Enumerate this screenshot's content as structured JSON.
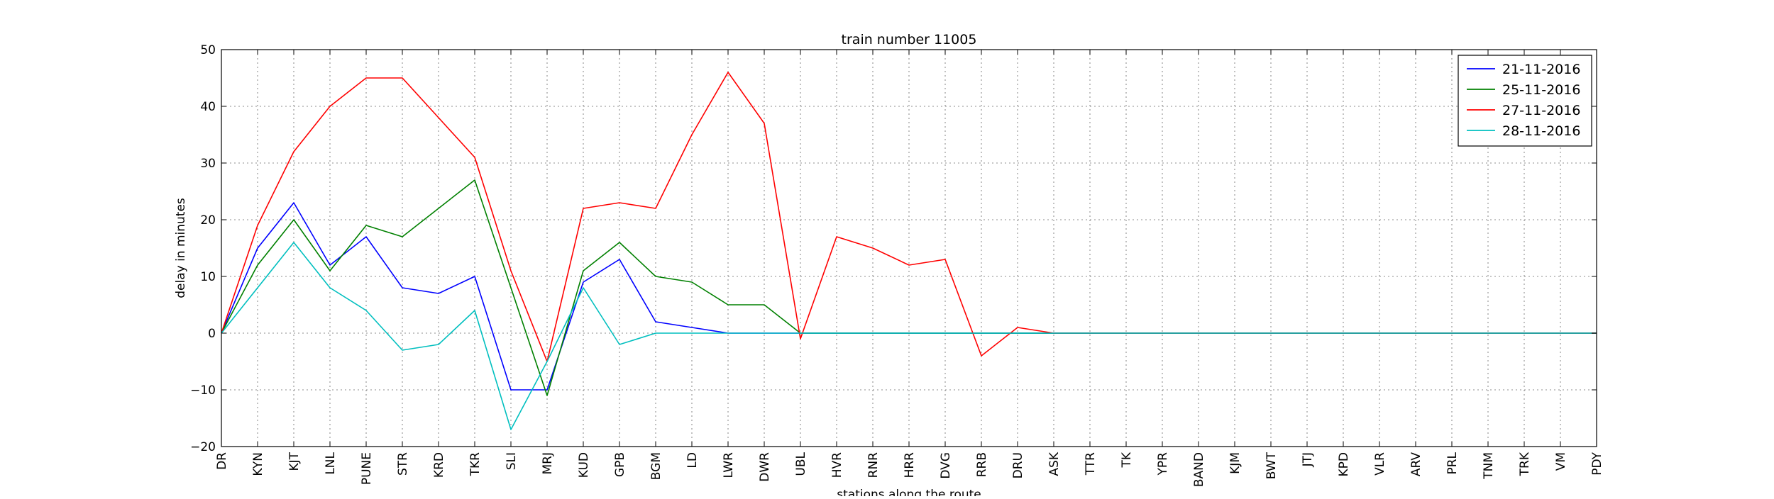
{
  "chart_data": {
    "type": "line",
    "title": "train number 11005",
    "xlabel": "stations along the route",
    "ylabel": "delay in minutes",
    "ylim": [
      -20,
      50
    ],
    "yticks": [
      -20,
      -10,
      0,
      10,
      20,
      30,
      40,
      50
    ],
    "grid": true,
    "legend_position": "top-right",
    "categories": [
      "DR",
      "KYN",
      "KJT",
      "LNL",
      "PUNE",
      "STR",
      "KRD",
      "TKR",
      "SLI",
      "MRJ",
      "KUD",
      "GPB",
      "BGM",
      "LD",
      "LWR",
      "DWR",
      "UBL",
      "HVR",
      "RNR",
      "HRR",
      "DVG",
      "RRB",
      "DRU",
      "ASK",
      "TTR",
      "TK",
      "YPR",
      "BAND",
      "KJM",
      "BWT",
      "JTJ",
      "KPD",
      "VLR",
      "ARV",
      "PRL",
      "TNM",
      "TRK",
      "VM",
      "PDY"
    ],
    "series": [
      {
        "name": "21-11-2016",
        "color": "#0000ff",
        "values": [
          0,
          15,
          23,
          12,
          17,
          8,
          7,
          10,
          -10,
          -10,
          9,
          13,
          2,
          1,
          0,
          0,
          0,
          0,
          0,
          0,
          0,
          0,
          0,
          0,
          0,
          0,
          0,
          0,
          0,
          0,
          0,
          0,
          0,
          0,
          0,
          0,
          0,
          0,
          0
        ]
      },
      {
        "name": "25-11-2016",
        "color": "#008000",
        "values": [
          0,
          12,
          20,
          11,
          19,
          17,
          22,
          27,
          8,
          -11,
          11,
          16,
          10,
          9,
          5,
          5,
          0,
          0,
          0,
          0,
          0,
          0,
          0,
          0,
          0,
          0,
          0,
          0,
          0,
          0,
          0,
          0,
          0,
          0,
          0,
          0,
          0,
          0,
          0
        ]
      },
      {
        "name": "27-11-2016",
        "color": "#ff0000",
        "values": [
          0,
          19,
          32,
          40,
          45,
          45,
          38,
          31,
          11,
          -5,
          22,
          23,
          22,
          35,
          46,
          37,
          -1,
          17,
          15,
          12,
          13,
          -4,
          1,
          0,
          0,
          0,
          0,
          0,
          0,
          0,
          0,
          0,
          0,
          0,
          0,
          0,
          0,
          0,
          0
        ]
      },
      {
        "name": "28-11-2016",
        "color": "#00bfbf",
        "values": [
          0,
          8,
          16,
          8,
          4,
          -3,
          -2,
          4,
          -17,
          -5,
          8,
          -2,
          0,
          0,
          0,
          0,
          0,
          0,
          0,
          0,
          0,
          0,
          0,
          0,
          0,
          0,
          0,
          0,
          0,
          0,
          0,
          0,
          0,
          0,
          0,
          0,
          0,
          0,
          0
        ]
      }
    ]
  }
}
